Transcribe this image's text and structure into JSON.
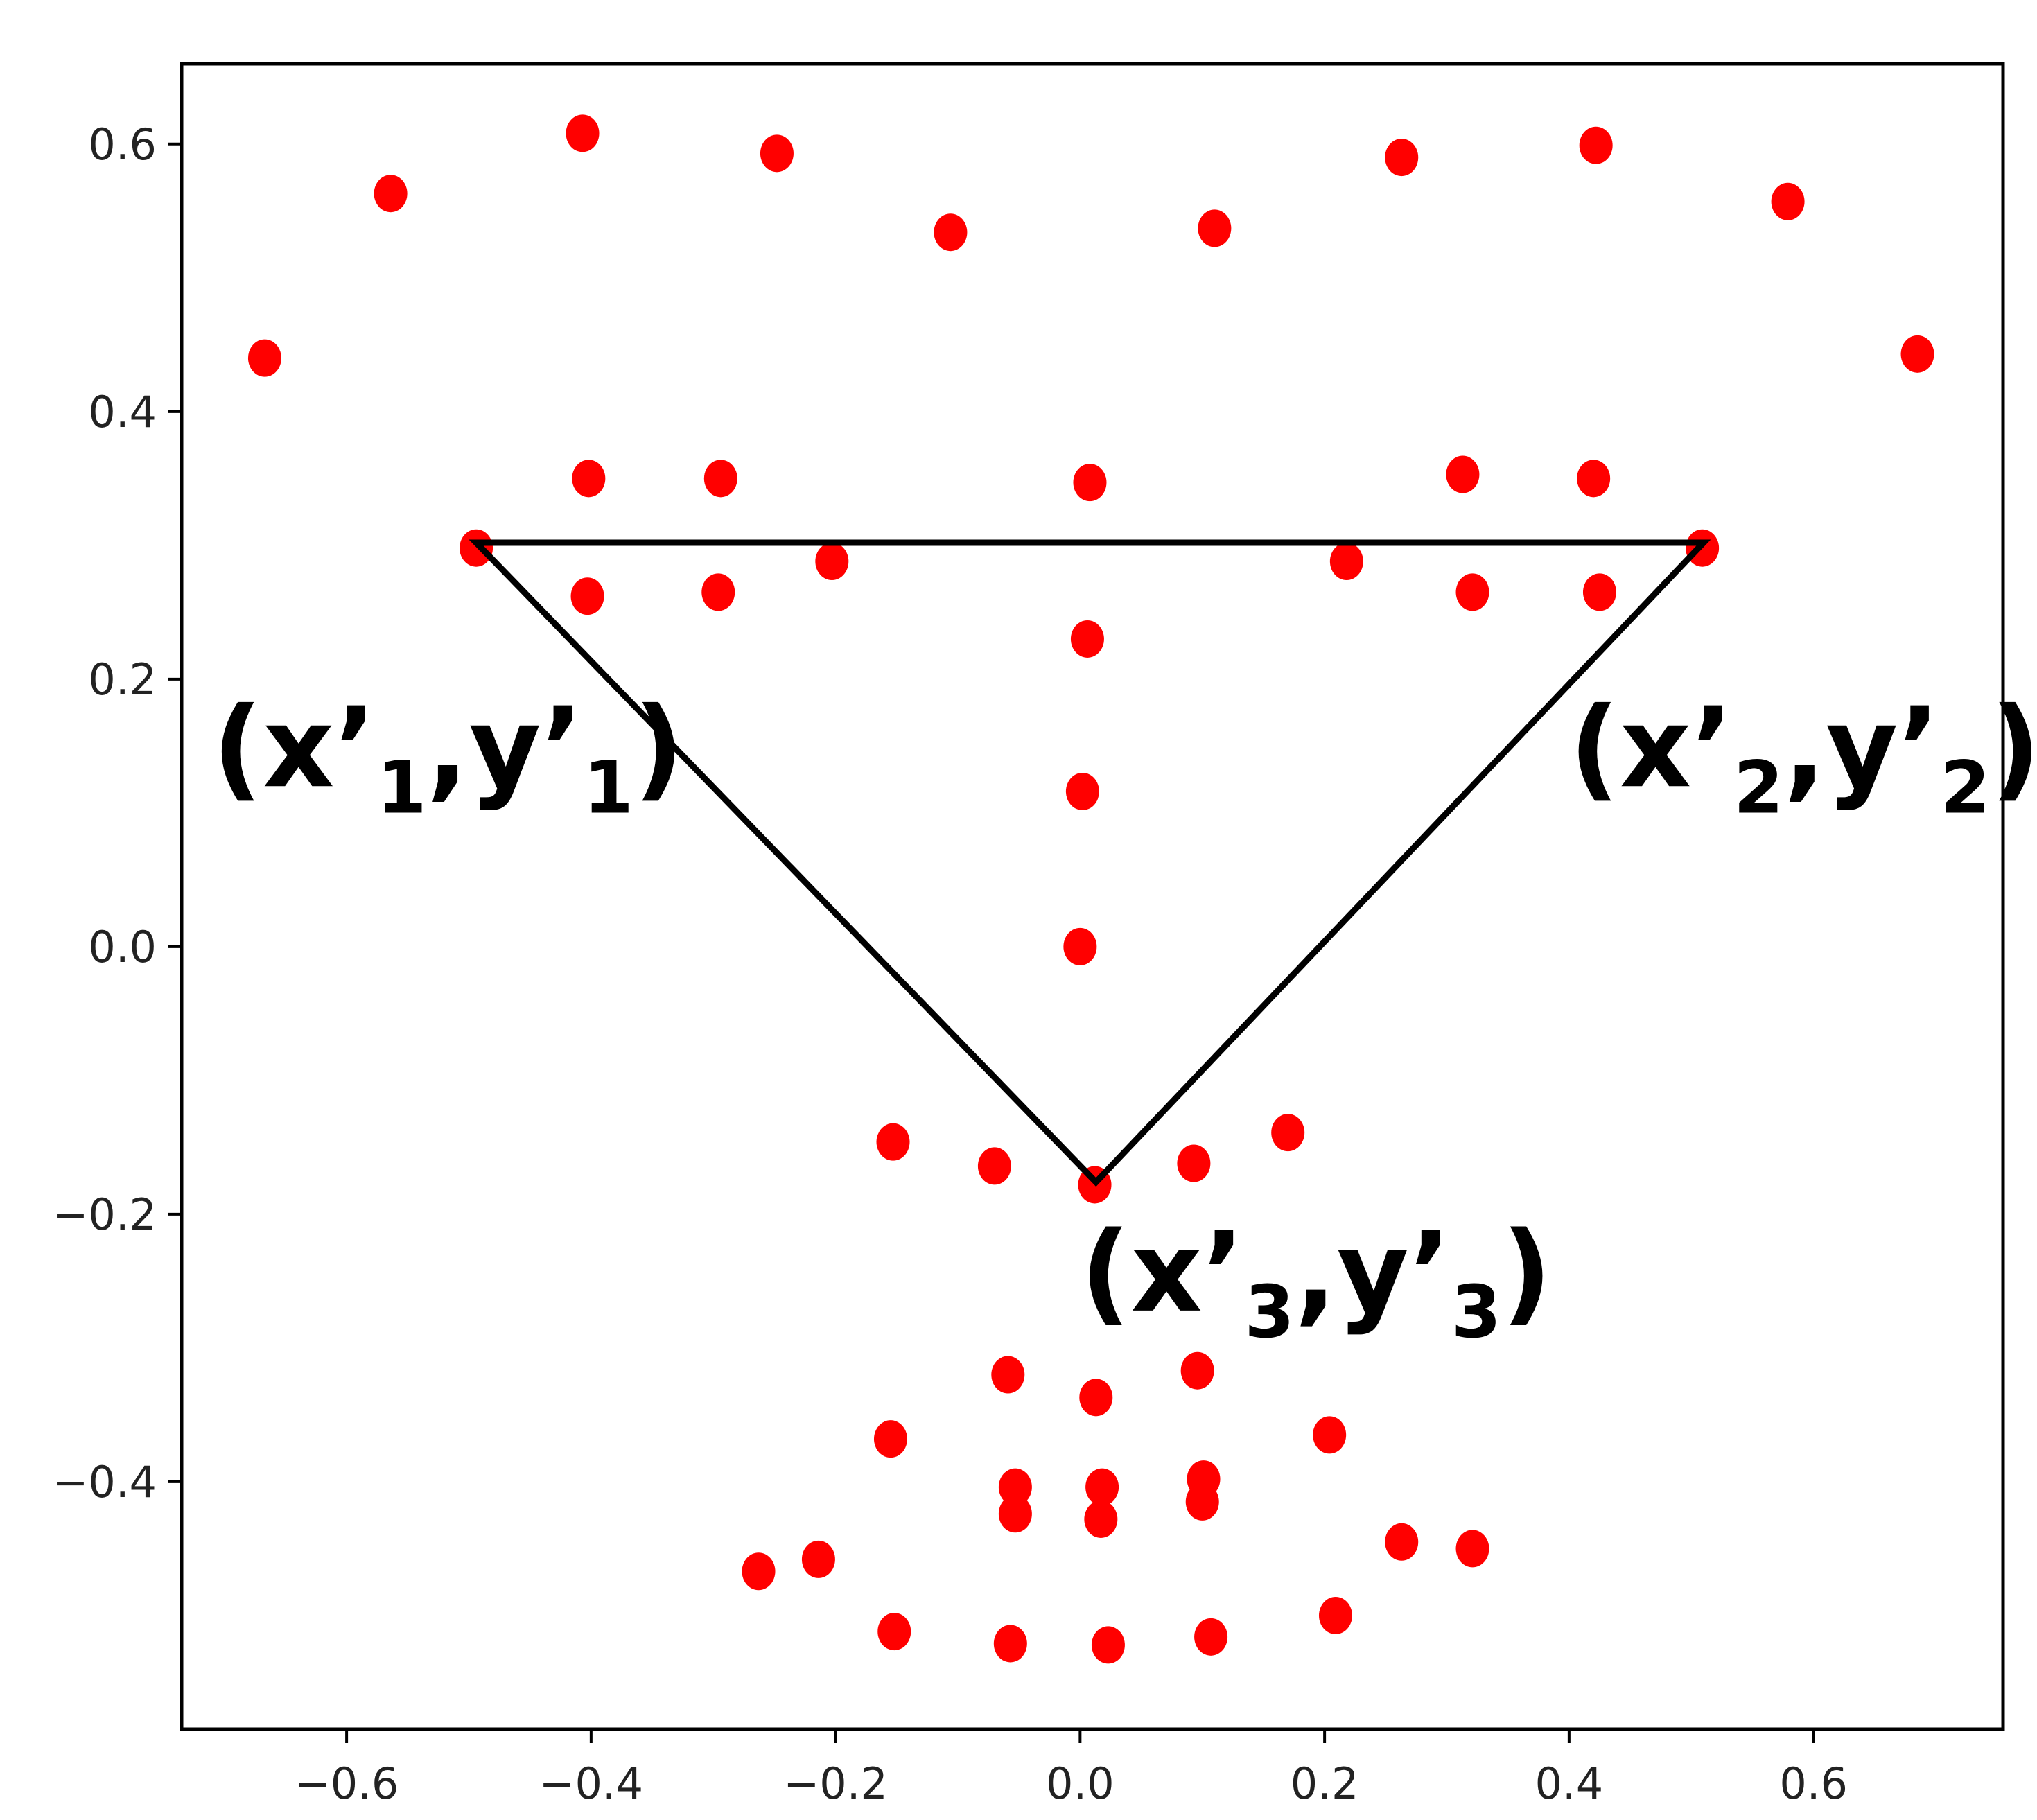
{
  "chart_data": {
    "type": "scatter",
    "title": "",
    "xlabel": "",
    "ylabel": "",
    "xlim": [
      -0.735,
      0.755
    ],
    "ylim": [
      -0.585,
      0.66
    ],
    "x_ticks": [
      -0.6,
      -0.4,
      -0.2,
      0.0,
      0.2,
      0.4,
      0.6
    ],
    "x_tick_labels": [
      "−0.6",
      "−0.4",
      "−0.2",
      "0.0",
      "0.2",
      "0.4",
      "0.6"
    ],
    "y_ticks": [
      0.6,
      0.4,
      0.2,
      0.0,
      -0.2,
      -0.4
    ],
    "y_tick_labels": [
      "0.6",
      "0.4",
      "0.2",
      "0.0",
      "−0.2",
      "−0.4"
    ],
    "grid": false,
    "marker_color": "#ff0000",
    "line_color": "#000000",
    "series": [
      {
        "points": [
          [
            -0.667,
            0.44
          ],
          [
            -0.564,
            0.563
          ],
          [
            -0.407,
            0.608
          ],
          [
            -0.248,
            0.593
          ],
          [
            -0.106,
            0.534
          ],
          [
            0.11,
            0.537
          ],
          [
            0.263,
            0.59
          ],
          [
            0.422,
            0.599
          ],
          [
            0.579,
            0.557
          ],
          [
            0.685,
            0.443
          ],
          [
            -0.402,
            0.35
          ],
          [
            -0.294,
            0.35
          ],
          [
            0.008,
            0.347
          ],
          [
            0.313,
            0.353
          ],
          [
            0.42,
            0.35
          ],
          [
            -0.494,
            0.298
          ],
          [
            -0.203,
            0.288
          ],
          [
            0.218,
            0.288
          ],
          [
            0.509,
            0.298
          ],
          [
            -0.403,
            0.262
          ],
          [
            -0.296,
            0.265
          ],
          [
            0.321,
            0.265
          ],
          [
            0.425,
            0.265
          ],
          [
            0.006,
            0.23
          ],
          [
            0.002,
            0.116
          ],
          [
            0.0,
            0.0
          ],
          [
            -0.153,
            -0.146
          ],
          [
            -0.07,
            -0.164
          ],
          [
            0.012,
            -0.178
          ],
          [
            0.093,
            -0.162
          ],
          [
            0.17,
            -0.139
          ],
          [
            -0.059,
            -0.32
          ],
          [
            0.013,
            -0.337
          ],
          [
            0.096,
            -0.317
          ],
          [
            -0.155,
            -0.368
          ],
          [
            0.204,
            -0.365
          ],
          [
            -0.053,
            -0.404
          ],
          [
            0.018,
            -0.404
          ],
          [
            0.101,
            -0.398
          ],
          [
            -0.053,
            -0.424
          ],
          [
            0.017,
            -0.428
          ],
          [
            0.1,
            -0.415
          ],
          [
            -0.263,
            -0.467
          ],
          [
            -0.214,
            -0.458
          ],
          [
            0.263,
            -0.445
          ],
          [
            0.321,
            -0.45
          ],
          [
            -0.152,
            -0.512
          ],
          [
            -0.057,
            -0.521
          ],
          [
            0.023,
            -0.522
          ],
          [
            0.107,
            -0.516
          ],
          [
            0.209,
            -0.5
          ]
        ]
      }
    ],
    "triangle": [
      [
        -0.494,
        0.302
      ],
      [
        0.51,
        0.302
      ],
      [
        0.013,
        -0.176
      ]
    ],
    "annotations": [
      {
        "base": "(x’",
        "sub": "1",
        "mid": ",y’",
        "sub2": "1",
        "end": ")",
        "x": -0.71,
        "y": 0.12
      },
      {
        "base": "(x’",
        "sub": "2",
        "mid": ",y’",
        "sub2": "2",
        "end": ")",
        "x": 0.4,
        "y": 0.12
      },
      {
        "base": "(x’",
        "sub": "3",
        "mid": ",y’",
        "sub2": "3",
        "end": ")",
        "x": 0.0,
        "y": -0.272
      }
    ]
  }
}
